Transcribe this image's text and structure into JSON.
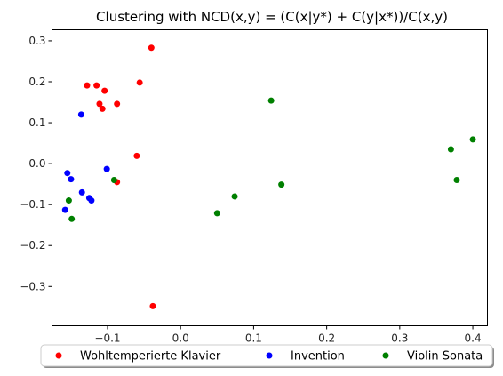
{
  "chart_data": {
    "type": "scatter",
    "title": "Clustering with NCD(x,y) = (C(x|y*) + C(y|x*))/C(x,y)",
    "xlabel": "",
    "ylabel": "",
    "xlim": [
      -0.176,
      0.42
    ],
    "ylim": [
      -0.396,
      0.327
    ],
    "x_ticks": [
      -0.1,
      0.0,
      0.1,
      0.2,
      0.3,
      0.4
    ],
    "x_tick_labels": [
      "−0.1",
      "0.0",
      "0.1",
      "0.2",
      "0.3",
      "0.4"
    ],
    "y_ticks": [
      0.3,
      0.2,
      0.1,
      0.0,
      -0.1,
      -0.2,
      -0.3
    ],
    "y_tick_labels": [
      "0.3",
      "0.2",
      "0.1",
      "0.0",
      "−0.1",
      "−0.2",
      "−0.3"
    ],
    "grid": false,
    "legend_position": "bottom-center",
    "series": [
      {
        "name": "Wohltemperierte Klavier",
        "color": "#ff0000",
        "points": [
          [
            -0.04,
            0.283
          ],
          [
            -0.056,
            0.198
          ],
          [
            -0.128,
            0.191
          ],
          [
            -0.115,
            0.191
          ],
          [
            -0.104,
            0.178
          ],
          [
            -0.111,
            0.146
          ],
          [
            -0.087,
            0.146
          ],
          [
            -0.107,
            0.134
          ],
          [
            -0.06,
            0.019
          ],
          [
            -0.087,
            -0.045
          ],
          [
            -0.038,
            -0.348
          ]
        ]
      },
      {
        "name": "Invention",
        "color": "#0000ff",
        "points": [
          [
            -0.136,
            0.12
          ],
          [
            -0.101,
            -0.013
          ],
          [
            -0.155,
            -0.023
          ],
          [
            -0.15,
            -0.038
          ],
          [
            -0.135,
            -0.07
          ],
          [
            -0.125,
            -0.084
          ],
          [
            -0.122,
            -0.09
          ],
          [
            -0.158,
            -0.113
          ]
        ]
      },
      {
        "name": "Violin Sonata",
        "color": "#008000",
        "points": [
          [
            0.124,
            0.154
          ],
          [
            0.37,
            0.035
          ],
          [
            0.4,
            0.059
          ],
          [
            0.378,
            -0.04
          ],
          [
            -0.091,
            -0.04
          ],
          [
            0.138,
            -0.051
          ],
          [
            0.074,
            -0.08
          ],
          [
            -0.153,
            -0.09
          ],
          [
            0.05,
            -0.121
          ],
          [
            -0.149,
            -0.135
          ]
        ]
      }
    ]
  }
}
